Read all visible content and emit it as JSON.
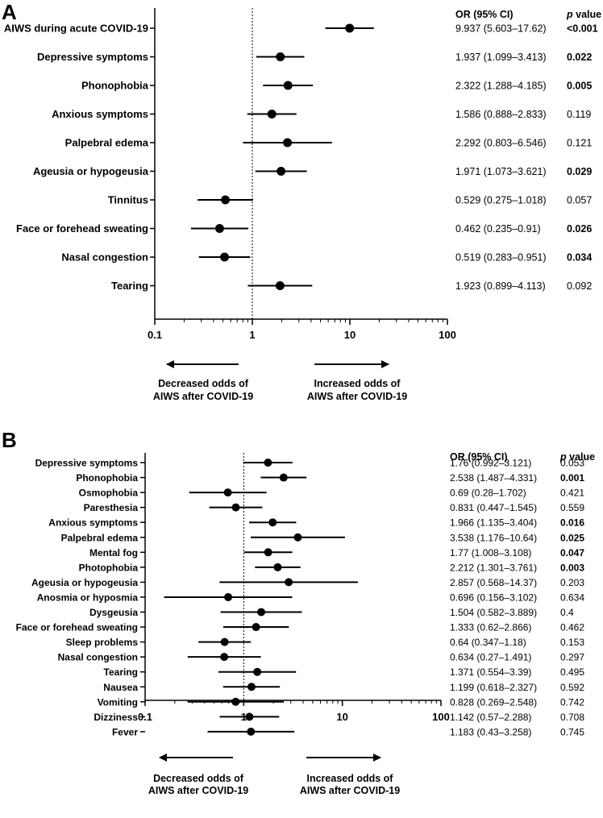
{
  "chart_data": [
    {
      "panel": "A",
      "type": "forest",
      "x_scale": "log",
      "xlim": [
        0.1,
        100
      ],
      "x_ticks": [
        "0.1",
        "1",
        "10",
        "100"
      ],
      "reference_line": 1,
      "col_or_header": "OR (95% CI)",
      "col_p_header": "p value",
      "left_note": [
        "Decreased odds of",
        "AIWS after COVID-19"
      ],
      "right_note": [
        "Increased odds of",
        "AIWS after COVID-19"
      ],
      "rows": [
        {
          "label": "AIWS during acute COVID-19",
          "or": 9.937,
          "lo": 5.603,
          "hi": 17.62,
          "or_text": "9.937 (5.603–17.62)",
          "p": "<0.001",
          "sig": true
        },
        {
          "label": "Depressive symptoms",
          "or": 1.937,
          "lo": 1.099,
          "hi": 3.413,
          "or_text": "1.937 (1.099–3.413)",
          "p": "0.022",
          "sig": true
        },
        {
          "label": "Phonophobia",
          "or": 2.322,
          "lo": 1.288,
          "hi": 4.185,
          "or_text": "2.322 (1.288–4.185)",
          "p": "0.005",
          "sig": true
        },
        {
          "label": "Anxious symptoms",
          "or": 1.586,
          "lo": 0.888,
          "hi": 2.833,
          "or_text": "1.586 (0.888–2.833)",
          "p": "0.119",
          "sig": false
        },
        {
          "label": "Palpebral edema",
          "or": 2.292,
          "lo": 0.803,
          "hi": 6.546,
          "or_text": "2.292 (0.803–6.546)",
          "p": "0.121",
          "sig": false
        },
        {
          "label": "Ageusia or hypogeusia",
          "or": 1.971,
          "lo": 1.073,
          "hi": 3.621,
          "or_text": "1.971 (1.073–3.621)",
          "p": "0.029",
          "sig": true
        },
        {
          "label": "Tinnitus",
          "or": 0.529,
          "lo": 0.275,
          "hi": 1.018,
          "or_text": "0.529 (0.275–1.018)",
          "p": "0.057",
          "sig": false
        },
        {
          "label": "Face or forehead sweating",
          "or": 0.462,
          "lo": 0.235,
          "hi": 0.91,
          "or_text": "0.462 (0.235–0.91)",
          "p": "0.026",
          "sig": true
        },
        {
          "label": "Nasal congestion",
          "or": 0.519,
          "lo": 0.283,
          "hi": 0.951,
          "or_text": "0.519 (0.283–0.951)",
          "p": "0.034",
          "sig": true
        },
        {
          "label": "Tearing",
          "or": 1.923,
          "lo": 0.899,
          "hi": 4.113,
          "or_text": "1.923 (0.899–4.113)",
          "p": "0.092",
          "sig": false
        }
      ]
    },
    {
      "panel": "B",
      "type": "forest",
      "x_scale": "log",
      "xlim": [
        0.1,
        100
      ],
      "x_ticks": [
        "0.1",
        "1",
        "10",
        "100"
      ],
      "reference_line": 1,
      "col_or_header": "OR (95% CI)",
      "col_p_header": "p value",
      "left_note": [
        "Decreased odds of",
        "AIWS after COVID-19"
      ],
      "right_note": [
        "Increased odds of",
        "AIWS after COVID-19"
      ],
      "rows": [
        {
          "label": "Depressive symptoms",
          "or": 1.76,
          "lo": 0.992,
          "hi": 3.121,
          "or_text": "1.76 (0.992–3.121)",
          "p": "0.053",
          "sig": false
        },
        {
          "label": "Phonophobia",
          "or": 2.538,
          "lo": 1.487,
          "hi": 4.331,
          "or_text": "2.538 (1.487–4.331)",
          "p": "0.001",
          "sig": true
        },
        {
          "label": "Osmophobia",
          "or": 0.69,
          "lo": 0.28,
          "hi": 1.702,
          "or_text": "0.69 (0.28–1.702)",
          "p": "0.421",
          "sig": false
        },
        {
          "label": "Paresthesia",
          "or": 0.831,
          "lo": 0.447,
          "hi": 1.545,
          "or_text": "0.831 (0.447–1.545)",
          "p": "0.559",
          "sig": false
        },
        {
          "label": "Anxious symptoms",
          "or": 1.966,
          "lo": 1.135,
          "hi": 3.404,
          "or_text": "1.966 (1.135–3.404)",
          "p": "0.016",
          "sig": true
        },
        {
          "label": "Palpebral edema",
          "or": 3.538,
          "lo": 1.176,
          "hi": 10.64,
          "or_text": "3.538 (1.176–10.64)",
          "p": "0.025",
          "sig": true
        },
        {
          "label": "Mental fog",
          "or": 1.77,
          "lo": 1.008,
          "hi": 3.108,
          "or_text": "1.77 (1.008–3.108)",
          "p": "0.047",
          "sig": true
        },
        {
          "label": "Photophobia",
          "or": 2.212,
          "lo": 1.301,
          "hi": 3.761,
          "or_text": "2.212 (1.301–3.761)",
          "p": "0.003",
          "sig": true
        },
        {
          "label": "Ageusia or hypogeusia",
          "or": 2.857,
          "lo": 0.568,
          "hi": 14.37,
          "or_text": "2.857 (0.568–14.37)",
          "p": "0.203",
          "sig": false
        },
        {
          "label": "Anosmia or hyposmia",
          "or": 0.696,
          "lo": 0.156,
          "hi": 3.102,
          "or_text": "0.696 (0.156–3.102)",
          "p": "0.634",
          "sig": false
        },
        {
          "label": "Dysgeusia",
          "or": 1.504,
          "lo": 0.582,
          "hi": 3.889,
          "or_text": "1.504 (0.582–3.889)",
          "p": "0.4",
          "sig": false
        },
        {
          "label": "Face or forehead sweating",
          "or": 1.333,
          "lo": 0.62,
          "hi": 2.866,
          "or_text": "1.333 (0.62–2.866)",
          "p": "0.462",
          "sig": false
        },
        {
          "label": "Sleep problems",
          "or": 0.64,
          "lo": 0.347,
          "hi": 1.18,
          "or_text": "0.64 (0.347–1.18)",
          "p": "0.153",
          "sig": false
        },
        {
          "label": "Nasal congestion",
          "or": 0.634,
          "lo": 0.27,
          "hi": 1.491,
          "or_text": "0.634 (0.27–1.491)",
          "p": "0.297",
          "sig": false
        },
        {
          "label": "Tearing",
          "or": 1.371,
          "lo": 0.554,
          "hi": 3.39,
          "or_text": "1.371 (0.554–3.39)",
          "p": "0.495",
          "sig": false
        },
        {
          "label": "Nausea",
          "or": 1.199,
          "lo": 0.618,
          "hi": 2.327,
          "or_text": "1.199 (0.618–2.327)",
          "p": "0.592",
          "sig": false
        },
        {
          "label": "Vomiting",
          "or": 0.828,
          "lo": 0.269,
          "hi": 2.548,
          "or_text": "0.828 (0.269–2.548)",
          "p": "0.742",
          "sig": false
        },
        {
          "label": "Dizziness",
          "or": 1.142,
          "lo": 0.57,
          "hi": 2.288,
          "or_text": "1.142 (0.57–2.288)",
          "p": "0.708",
          "sig": false
        },
        {
          "label": "Fever",
          "or": 1.183,
          "lo": 0.43,
          "hi": 3.258,
          "or_text": "1.183 (0.43–3.258)",
          "p": "0.745",
          "sig": false
        }
      ]
    }
  ]
}
